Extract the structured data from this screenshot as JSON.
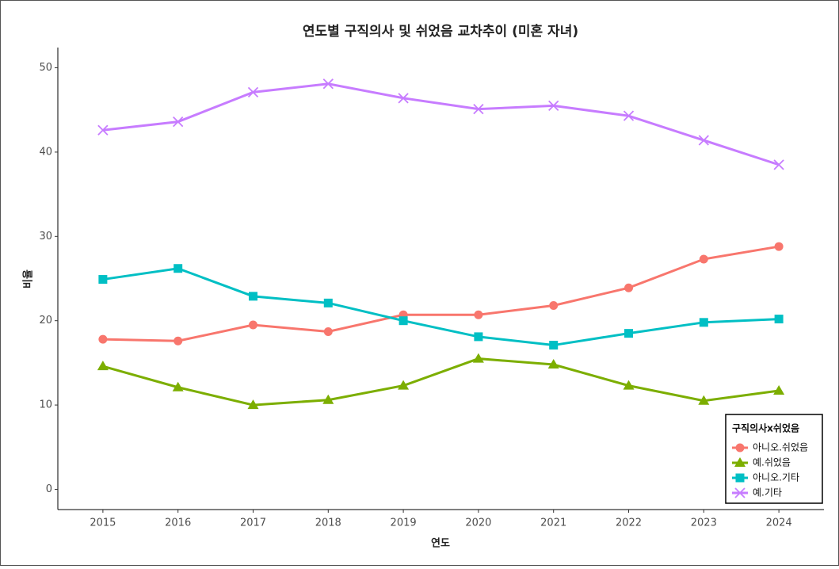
{
  "chart_data": {
    "type": "line",
    "title": "연도별 구직의사 및 쉬었음 교차추이 (미혼 자녀)",
    "x_label": "연도",
    "y_label": "비율",
    "legend_title": "구직의사x쉬었음",
    "x": [
      2015,
      2016,
      2017,
      2018,
      2019,
      2020,
      2021,
      2022,
      2023,
      2024
    ],
    "xlim": [
      2014.4,
      2024.6
    ],
    "xticks": [
      2015,
      2016,
      2017,
      2018,
      2019,
      2020,
      2021,
      2022,
      2023,
      2024
    ],
    "ylim": [
      -2.4,
      52.4
    ],
    "yticks": [
      0,
      10,
      20,
      30,
      40,
      50
    ],
    "grid": false,
    "legend_position": "bottom-right",
    "series": [
      {
        "name": "아니오.쉬었음",
        "color": "#F8766D",
        "marker": "circle",
        "values": [
          17.8,
          17.6,
          19.5,
          18.7,
          20.7,
          20.7,
          21.8,
          23.9,
          27.3,
          28.8
        ]
      },
      {
        "name": "예.쉬었음",
        "color": "#7CAE00",
        "marker": "triangle",
        "values": [
          14.6,
          12.1,
          10.0,
          10.6,
          12.3,
          15.5,
          14.8,
          12.3,
          10.5,
          11.7
        ]
      },
      {
        "name": "아니오.기타",
        "color": "#00BFC4",
        "marker": "square",
        "values": [
          24.9,
          26.2,
          22.9,
          22.1,
          20.0,
          18.1,
          17.1,
          18.5,
          19.8,
          20.2
        ]
      },
      {
        "name": "예.기타",
        "color": "#C77CFF",
        "marker": "cross",
        "values": [
          42.6,
          43.6,
          47.1,
          48.1,
          46.4,
          45.1,
          45.5,
          44.3,
          41.4,
          38.5
        ]
      }
    ]
  }
}
